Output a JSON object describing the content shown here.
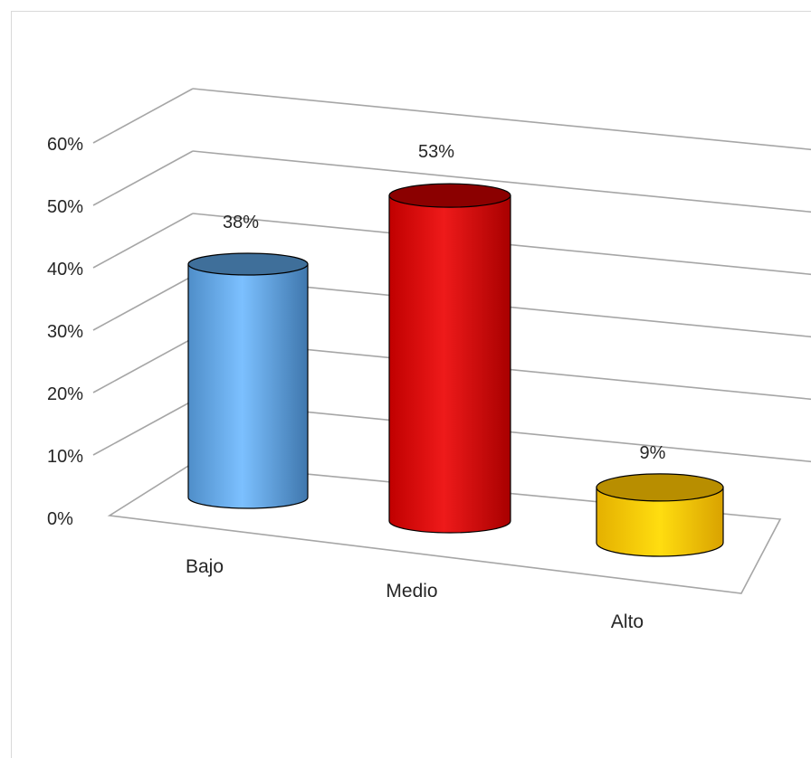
{
  "chart_data": {
    "type": "bar",
    "style": "3d-cylinder",
    "categories": [
      "Bajo",
      "Medio",
      "Alto"
    ],
    "values": [
      38,
      53,
      9
    ],
    "data_labels": [
      "38%",
      "53%",
      "9%"
    ],
    "colors": [
      "#5ea8ec",
      "#e01010",
      "#f2c200"
    ],
    "title": "",
    "xlabel": "",
    "ylabel": "",
    "ylim": [
      0,
      60
    ],
    "yticks": [
      "0%",
      "10%",
      "20%",
      "30%",
      "40%",
      "50%",
      "60%"
    ],
    "grid": true,
    "legend": "none"
  }
}
